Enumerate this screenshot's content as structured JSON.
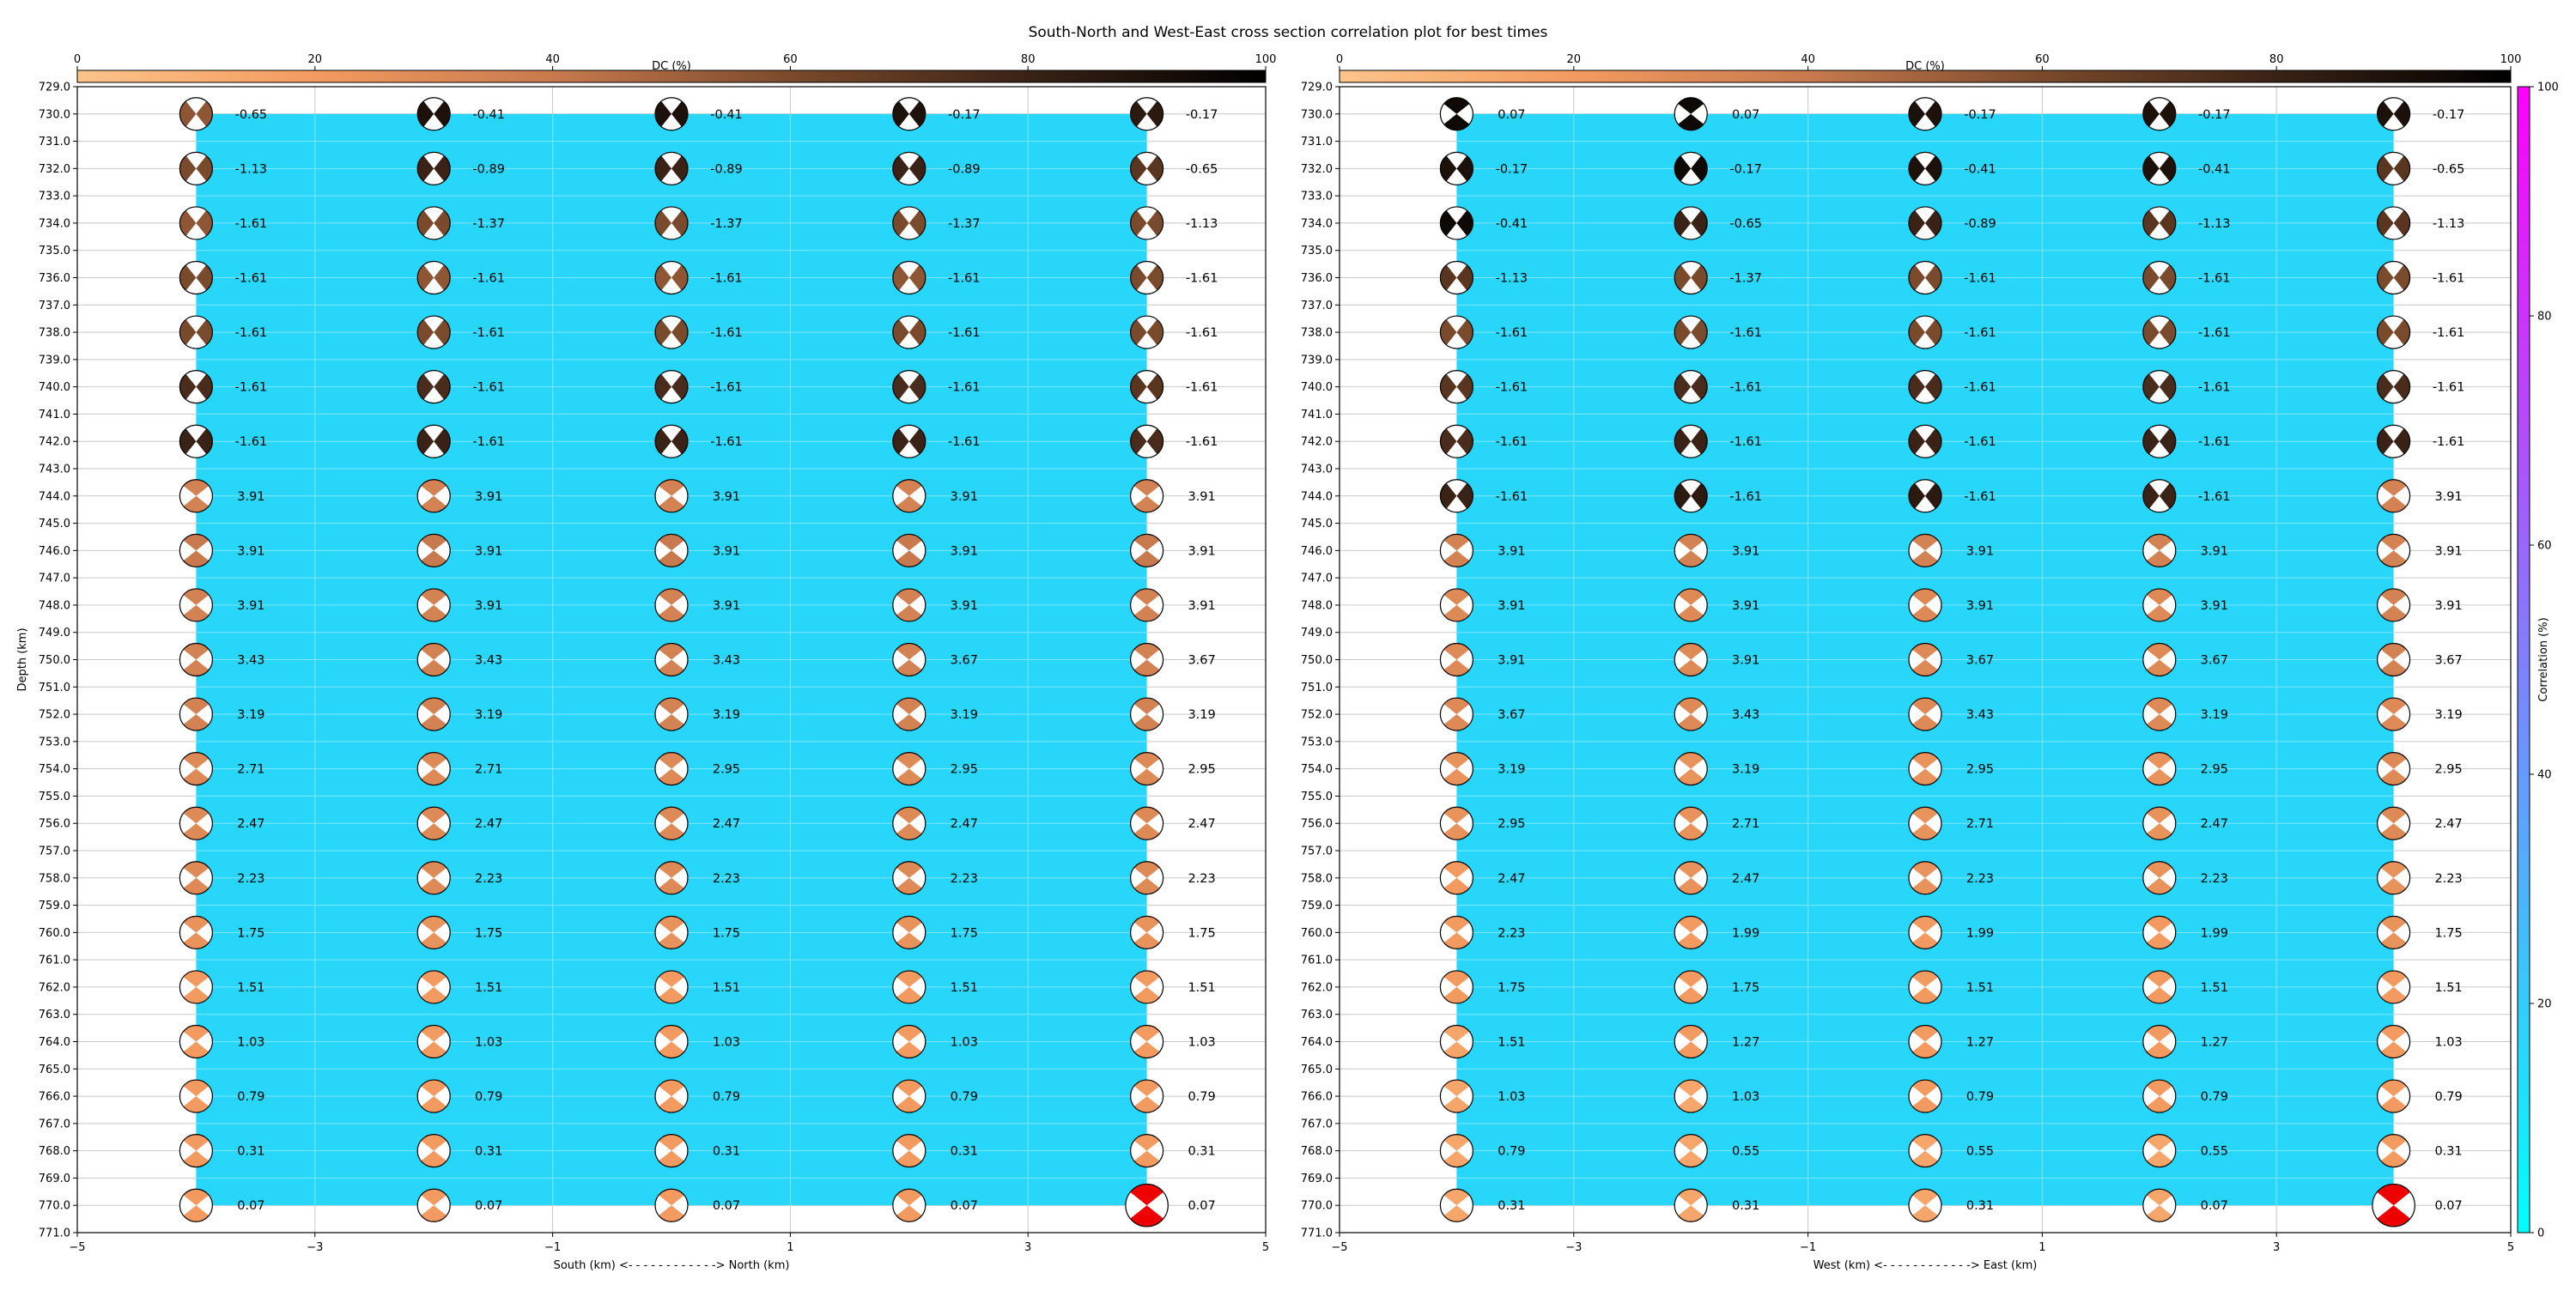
{
  "title": "South-North and West-East cross section correlation plot for best times",
  "dc_colorbar": {
    "label": "DC (%)",
    "ticks": [
      "0",
      "20",
      "40",
      "60",
      "80",
      "100"
    ],
    "color_stops": [
      "#fdc48a",
      "#f39a60",
      "#c87a4e",
      "#7a4a2c",
      "#3a2216",
      "#000000"
    ]
  },
  "corr_colorbar": {
    "label": "Correlation (%)",
    "ticks": [
      "0",
      "20",
      "40",
      "60",
      "80",
      "100"
    ],
    "color_stops": [
      "#00ffff",
      "#ff00ff"
    ]
  },
  "colors": {
    "fill": "#28d6f9",
    "beachball_selected": "#ee0000",
    "grid": "#c8c8c8"
  },
  "chart_data": [
    {
      "type": "heatmap",
      "id": "south-north",
      "xlabel": "South (km) <- - - - - - - - - - - -> North (km)",
      "ylabel": "Depth (km)",
      "xlim": [
        -5,
        5
      ],
      "ylim": [
        771,
        729
      ],
      "xticks": [
        "−5",
        "−3",
        "−1",
        "1",
        "3",
        "5"
      ],
      "yticks": [
        "729.0",
        "730.0",
        "731.0",
        "732.0",
        "733.0",
        "734.0",
        "735.0",
        "736.0",
        "737.0",
        "738.0",
        "739.0",
        "740.0",
        "741.0",
        "742.0",
        "743.0",
        "744.0",
        "745.0",
        "746.0",
        "747.0",
        "748.0",
        "749.0",
        "750.0",
        "751.0",
        "752.0",
        "753.0",
        "754.0",
        "755.0",
        "756.0",
        "757.0",
        "758.0",
        "759.0",
        "760.0",
        "761.0",
        "762.0",
        "763.0",
        "764.0",
        "765.0",
        "766.0",
        "767.0",
        "768.0",
        "769.0",
        "770.0",
        "771.0"
      ],
      "x": [
        -4,
        -2,
        0,
        2,
        4
      ],
      "depths": [
        730,
        732,
        734,
        736,
        738,
        740,
        742,
        744,
        746,
        748,
        750,
        752,
        754,
        756,
        758,
        760,
        762,
        764,
        766,
        768,
        770
      ],
      "values": [
        [
          -0.65,
          -0.41,
          -0.41,
          -0.17,
          -0.17
        ],
        [
          -1.13,
          -0.89,
          -0.89,
          -0.89,
          -0.65
        ],
        [
          -1.61,
          -1.37,
          -1.37,
          -1.37,
          -1.13
        ],
        [
          -1.61,
          -1.61,
          -1.61,
          -1.61,
          -1.61
        ],
        [
          -1.61,
          -1.61,
          -1.61,
          -1.61,
          -1.61
        ],
        [
          -1.61,
          -1.61,
          -1.61,
          -1.61,
          -1.61
        ],
        [
          -1.61,
          -1.61,
          -1.61,
          -1.61,
          -1.61
        ],
        [
          3.91,
          3.91,
          3.91,
          3.91,
          3.91
        ],
        [
          3.91,
          3.91,
          3.91,
          3.91,
          3.91
        ],
        [
          3.91,
          3.91,
          3.91,
          3.91,
          3.91
        ],
        [
          3.43,
          3.43,
          3.43,
          3.67,
          3.67
        ],
        [
          3.19,
          3.19,
          3.19,
          3.19,
          3.19
        ],
        [
          2.71,
          2.71,
          2.95,
          2.95,
          2.95
        ],
        [
          2.47,
          2.47,
          2.47,
          2.47,
          2.47
        ],
        [
          2.23,
          2.23,
          2.23,
          2.23,
          2.23
        ],
        [
          1.75,
          1.75,
          1.75,
          1.75,
          1.75
        ],
        [
          1.51,
          1.51,
          1.51,
          1.51,
          1.51
        ],
        [
          1.03,
          1.03,
          1.03,
          1.03,
          1.03
        ],
        [
          0.79,
          0.79,
          0.79,
          0.79,
          0.79
        ],
        [
          0.31,
          0.31,
          0.31,
          0.31,
          0.31
        ],
        [
          0.07,
          0.07,
          0.07,
          0.07,
          0.07
        ]
      ],
      "beachball_dc_percent": [
        [
          55,
          90,
          90,
          90,
          85
        ],
        [
          60,
          80,
          80,
          80,
          70
        ],
        [
          55,
          60,
          60,
          60,
          60
        ],
        [
          60,
          55,
          55,
          55,
          60
        ],
        [
          60,
          60,
          60,
          60,
          60
        ],
        [
          75,
          75,
          75,
          75,
          70
        ],
        [
          80,
          80,
          80,
          80,
          75
        ],
        [
          35,
          35,
          35,
          35,
          35
        ],
        [
          40,
          40,
          40,
          40,
          40
        ],
        [
          35,
          35,
          35,
          35,
          35
        ],
        [
          35,
          35,
          35,
          35,
          35
        ],
        [
          35,
          35,
          35,
          35,
          35
        ],
        [
          30,
          30,
          30,
          30,
          30
        ],
        [
          30,
          30,
          30,
          30,
          30
        ],
        [
          30,
          30,
          30,
          30,
          30
        ],
        [
          25,
          25,
          25,
          25,
          25
        ],
        [
          20,
          20,
          20,
          20,
          20
        ],
        [
          20,
          20,
          20,
          20,
          20
        ],
        [
          20,
          20,
          20,
          20,
          20
        ],
        [
          20,
          20,
          20,
          20,
          20
        ],
        [
          20,
          20,
          20,
          20,
          20
        ]
      ],
      "best_solution": {
        "x": 4,
        "depth": 770
      },
      "correlation_fill": {
        "x_range": [
          -4,
          4
        ],
        "depth_range": [
          730,
          770
        ],
        "correlation_percent": 17
      }
    },
    {
      "type": "heatmap",
      "id": "west-east",
      "xlabel": "West (km) <- - - - - - - - - - - -> East (km)",
      "ylabel": "",
      "xlim": [
        -5,
        5
      ],
      "ylim": [
        771,
        729
      ],
      "xticks": [
        "−5",
        "−3",
        "−1",
        "1",
        "3",
        "5"
      ],
      "yticks": [
        "729.0",
        "730.0",
        "731.0",
        "732.0",
        "733.0",
        "734.0",
        "735.0",
        "736.0",
        "737.0",
        "738.0",
        "739.0",
        "740.0",
        "741.0",
        "742.0",
        "743.0",
        "744.0",
        "745.0",
        "746.0",
        "747.0",
        "748.0",
        "749.0",
        "750.0",
        "751.0",
        "752.0",
        "753.0",
        "754.0",
        "755.0",
        "756.0",
        "757.0",
        "758.0",
        "759.0",
        "760.0",
        "761.0",
        "762.0",
        "763.0",
        "764.0",
        "765.0",
        "766.0",
        "767.0",
        "768.0",
        "769.0",
        "770.0",
        "771.0"
      ],
      "x": [
        -4,
        -2,
        0,
        2,
        4
      ],
      "depths": [
        730,
        732,
        734,
        736,
        738,
        740,
        742,
        744,
        746,
        748,
        750,
        752,
        754,
        756,
        758,
        760,
        762,
        764,
        766,
        768,
        770
      ],
      "values": [
        [
          0.07,
          0.07,
          -0.17,
          -0.17,
          -0.17
        ],
        [
          -0.17,
          -0.17,
          -0.41,
          -0.41,
          -0.65
        ],
        [
          -0.41,
          -0.65,
          -0.89,
          -1.13,
          -1.13
        ],
        [
          -1.13,
          -1.37,
          -1.61,
          -1.61,
          -1.61
        ],
        [
          -1.61,
          -1.61,
          -1.61,
          -1.61,
          -1.61
        ],
        [
          -1.61,
          -1.61,
          -1.61,
          -1.61,
          -1.61
        ],
        [
          -1.61,
          -1.61,
          -1.61,
          -1.61,
          -1.61
        ],
        [
          -1.61,
          -1.61,
          -1.61,
          -1.61,
          3.91
        ],
        [
          3.91,
          3.91,
          3.91,
          3.91,
          3.91
        ],
        [
          3.91,
          3.91,
          3.91,
          3.91,
          3.91
        ],
        [
          3.91,
          3.91,
          3.67,
          3.67,
          3.67
        ],
        [
          3.67,
          3.43,
          3.43,
          3.19,
          3.19
        ],
        [
          3.19,
          3.19,
          2.95,
          2.95,
          2.95
        ],
        [
          2.95,
          2.71,
          2.71,
          2.47,
          2.47
        ],
        [
          2.47,
          2.47,
          2.23,
          2.23,
          2.23
        ],
        [
          2.23,
          1.99,
          1.99,
          1.99,
          1.75
        ],
        [
          1.75,
          1.75,
          1.51,
          1.51,
          1.51
        ],
        [
          1.51,
          1.27,
          1.27,
          1.27,
          1.03
        ],
        [
          1.03,
          1.03,
          0.79,
          0.79,
          0.79
        ],
        [
          0.79,
          0.55,
          0.55,
          0.55,
          0.31
        ],
        [
          0.31,
          0.31,
          0.31,
          0.07,
          0.07
        ]
      ],
      "beachball_dc_percent": [
        [
          95,
          95,
          90,
          90,
          90
        ],
        [
          90,
          95,
          90,
          90,
          70
        ],
        [
          95,
          80,
          80,
          70,
          70
        ],
        [
          70,
          60,
          60,
          60,
          60
        ],
        [
          60,
          60,
          60,
          60,
          60
        ],
        [
          70,
          75,
          75,
          75,
          75
        ],
        [
          75,
          80,
          80,
          80,
          80
        ],
        [
          80,
          85,
          85,
          80,
          35
        ],
        [
          35,
          35,
          35,
          35,
          35
        ],
        [
          30,
          30,
          30,
          30,
          35
        ],
        [
          30,
          30,
          30,
          30,
          35
        ],
        [
          30,
          30,
          30,
          30,
          30
        ],
        [
          25,
          25,
          25,
          25,
          30
        ],
        [
          25,
          25,
          25,
          25,
          30
        ],
        [
          20,
          25,
          25,
          25,
          25
        ],
        [
          20,
          20,
          20,
          20,
          25
        ],
        [
          20,
          20,
          20,
          20,
          20
        ],
        [
          15,
          20,
          20,
          20,
          20
        ],
        [
          15,
          15,
          20,
          20,
          20
        ],
        [
          15,
          15,
          15,
          15,
          20
        ],
        [
          15,
          15,
          15,
          15,
          20
        ]
      ],
      "best_solution": {
        "x": 4,
        "depth": 770
      },
      "correlation_fill": {
        "x_range": [
          -4,
          4
        ],
        "depth_range": [
          730,
          770
        ],
        "correlation_percent": 17
      }
    }
  ]
}
